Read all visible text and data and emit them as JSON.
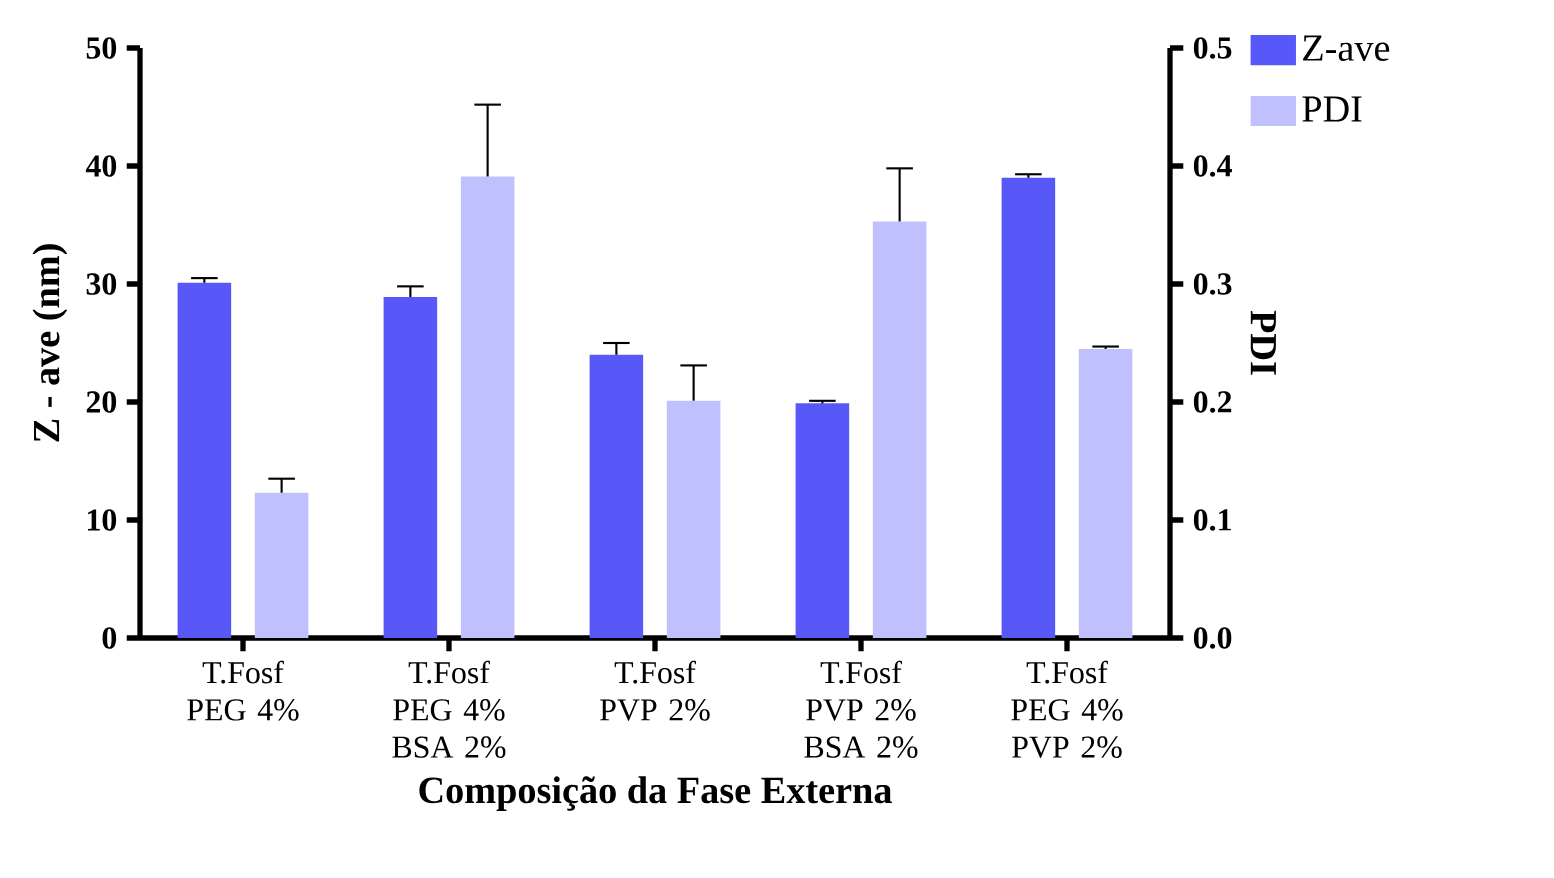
{
  "chart_data": {
    "type": "bar",
    "xlabel": "Composição da Fase Externa",
    "ylabel": "Z - ave (nm)",
    "y2label": "PDI",
    "categories": [
      "T.Fosf PEG 4%",
      "T.Fosf PEG 4% BSA 2%",
      "T.Fosf PVP 2%",
      "T.Fosf PVP 2% BSA 2%",
      "T.Fosf PEG 4% PVP 2%"
    ],
    "series": [
      {
        "name": "Z-ave",
        "color": "#5858f8",
        "values": [
          30.1,
          28.9,
          24.0,
          19.9,
          39.0
        ],
        "errors": [
          0.4,
          0.9,
          1.0,
          0.2,
          0.3
        ]
      },
      {
        "name": "PDI",
        "color": "#c0c0ff",
        "axis": "y2",
        "values": [
          0.123,
          0.391,
          0.201,
          0.353,
          0.245
        ],
        "errors": [
          0.012,
          0.061,
          0.03,
          0.045,
          0.002
        ]
      }
    ],
    "ylim": [
      0,
      50
    ],
    "yticks": [
      0,
      10,
      20,
      30,
      40,
      50
    ],
    "y2lim": [
      0,
      0.5
    ],
    "y2ticks": [
      {
        "value": 0,
        "label": "0.0"
      },
      0.1,
      0.2,
      0.3,
      0.4,
      0.5
    ],
    "legend": "top right"
  }
}
